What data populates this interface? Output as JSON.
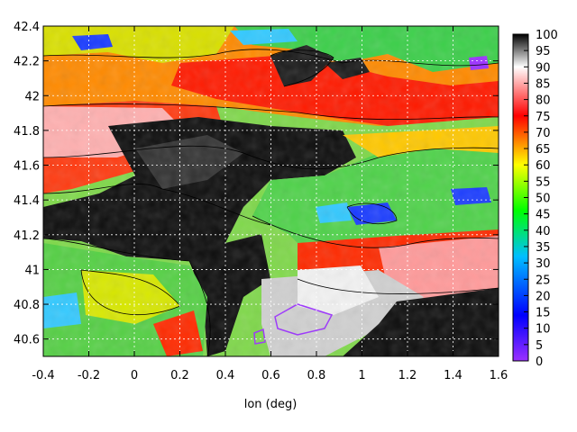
{
  "chart_data": {
    "type": "heatmap",
    "title": "",
    "xlabel": "lon (deg)",
    "ylabel": "",
    "xlim": [
      -0.4,
      1.6
    ],
    "ylim": [
      40.5,
      42.4
    ],
    "xticks": [
      "-0.4",
      "-0.2",
      "0",
      "0.2",
      "0.4",
      "0.6",
      "0.8",
      "1",
      "1.2",
      "1.4",
      "1.6"
    ],
    "yticks": [
      "40.6",
      "40.8",
      "41",
      "41.2",
      "41.4",
      "41.6",
      "41.8",
      "42",
      "42.2",
      "42.4"
    ],
    "grid": true,
    "colorbar": {
      "range": [
        0,
        100
      ],
      "ticks": [
        "0",
        "5",
        "10",
        "15",
        "20",
        "25",
        "30",
        "35",
        "40",
        "45",
        "50",
        "55",
        "60",
        "65",
        "70",
        "75",
        "80",
        "85",
        "90",
        "95",
        "100"
      ],
      "colors": [
        "#9b30ff",
        "#0000ff",
        "#00bfff",
        "#00ff00",
        "#ffff00",
        "#ff0000",
        "#ff9999",
        "#ffffff",
        "#000000"
      ]
    },
    "regions": [
      {
        "name": "dark band north-west",
        "x": [
          -0.4,
          0.3
        ],
        "y": [
          41.15,
          41.3
        ],
        "value": 97
      },
      {
        "name": "dark core centre",
        "x": [
          0.0,
          0.9
        ],
        "y": [
          41.4,
          41.8
        ],
        "value": 98
      },
      {
        "name": "dark south",
        "x": [
          0.35,
          0.75
        ],
        "y": [
          40.5,
          41.05
        ],
        "value": 95
      },
      {
        "name": "dark south-east",
        "x": [
          1.05,
          1.6
        ],
        "y": [
          40.5,
          40.9
        ],
        "value": 98
      },
      {
        "name": "pink east",
        "x": [
          1.15,
          1.6
        ],
        "y": [
          40.9,
          41.2
        ],
        "value": 85
      },
      {
        "name": "gray south-centre",
        "x": [
          0.8,
          1.2
        ],
        "y": [
          40.6,
          40.95
        ],
        "value": 90
      },
      {
        "name": "dark north",
        "x": [
          0.65,
          0.95
        ],
        "y": [
          42.05,
          42.25
        ],
        "value": 96
      },
      {
        "name": "green east",
        "x": [
          0.9,
          1.6
        ],
        "y": [
          41.3,
          41.6
        ],
        "value": 55
      },
      {
        "name": "blue patch north-west",
        "x": [
          -0.35,
          -0.1
        ],
        "y": [
          42.2,
          42.3
        ],
        "value": 30
      },
      {
        "name": "blue patch east",
        "x": [
          1.1,
          1.25
        ],
        "y": [
          41.25,
          41.35
        ],
        "value": 30
      }
    ]
  }
}
